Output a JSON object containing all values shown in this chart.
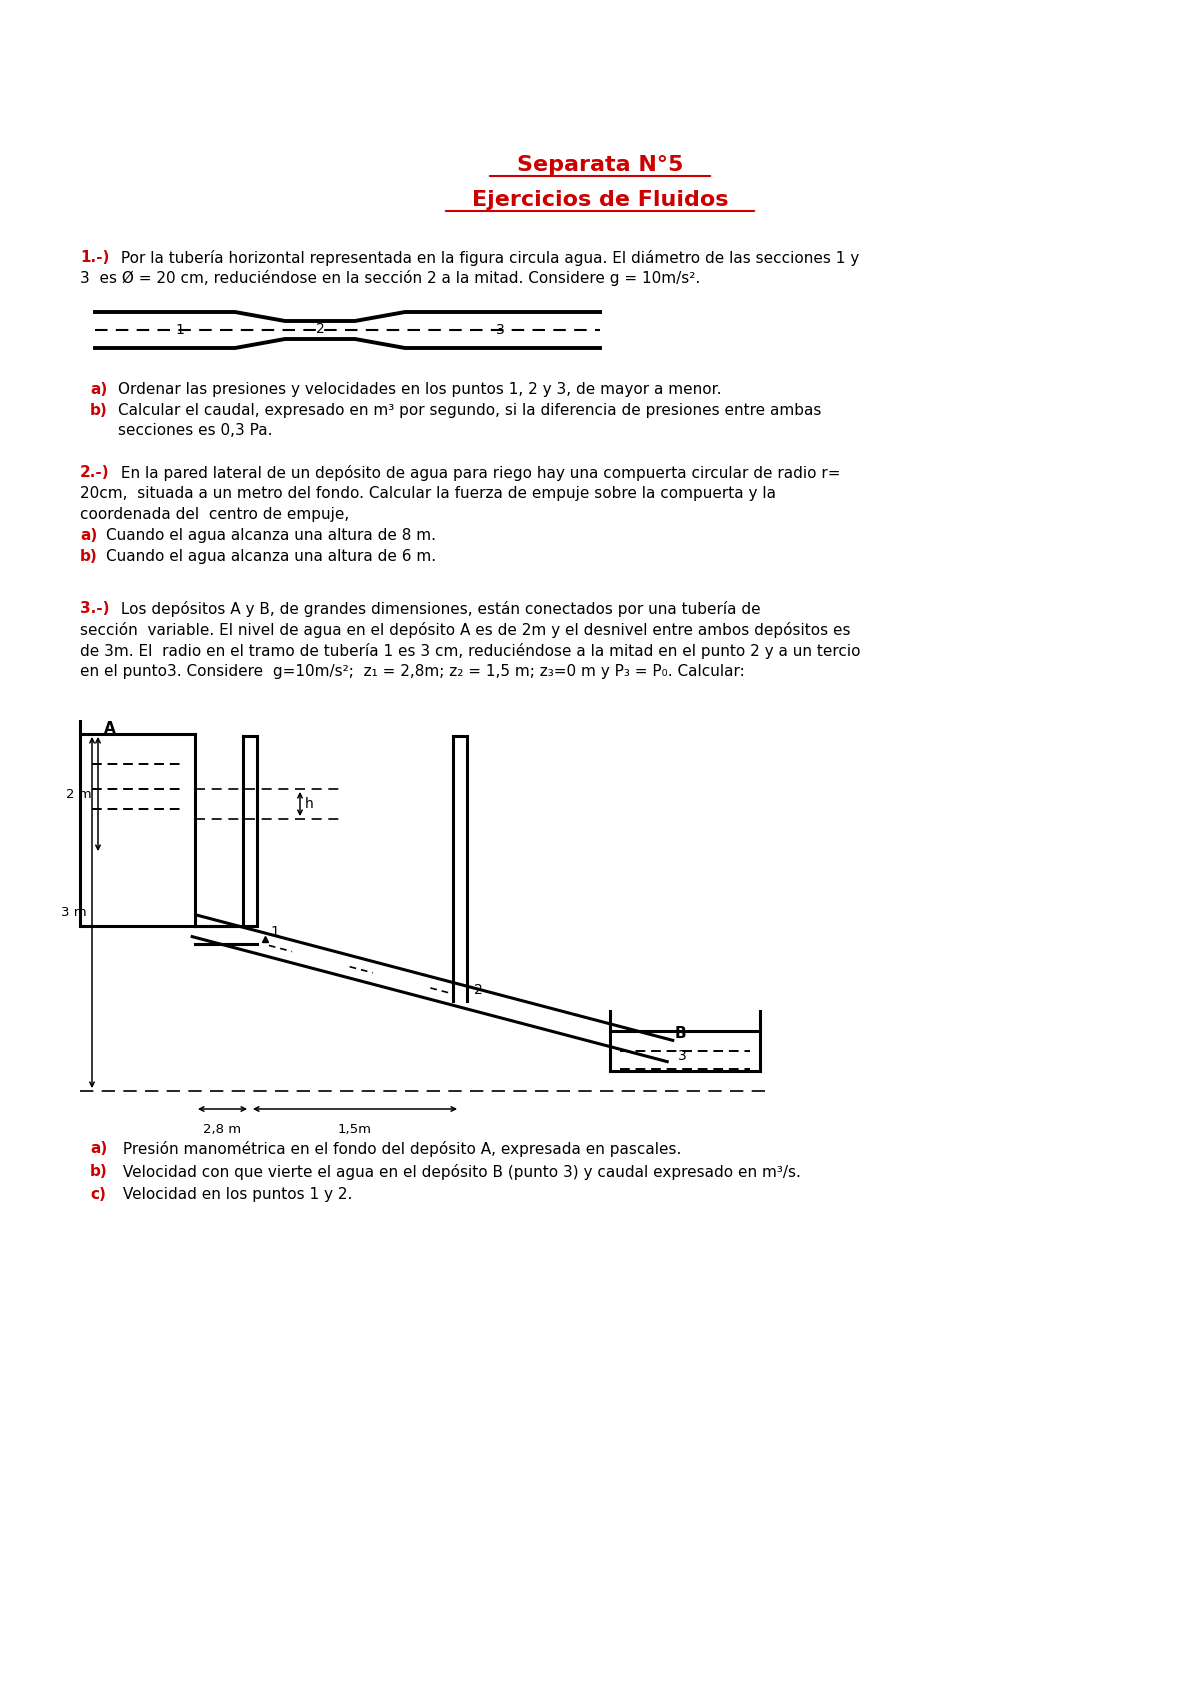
{
  "title_line1": "Separata N°5",
  "title_line2": "Ejercicios de Fluidos",
  "title_color": "#cc0000",
  "text_color": "#000000",
  "red_color": "#cc0000",
  "bg_color": "#ffffff",
  "font_size_title": 16,
  "font_size_body": 11,
  "font_size_small": 9.5,
  "problem1_prefix": "1.-)",
  "problem1_line1": " Por la tubería horizontal representada en la figura circula agua. El diámetro de las secciones 1 y",
  "problem1_line2": "3  es Ø = 20 cm, reduciéndose en la sección 2 a la mitad. Considere g = 10m/s².",
  "problem1a_label": "a)",
  "problem1a_text": "Ordenar las presiones y velocidades en los puntos 1, 2 y 3, de mayor a menor.",
  "problem1b_label": "b)",
  "problem1b_line1": "Calcular el caudal, expresado en m³ por segundo, si la diferencia de presiones entre ambas",
  "problem1b_line2": "secciones es 0,3 Pa.",
  "problem2_prefix": "2.-)",
  "problem2_line1": " En la pared lateral de un depósito de agua para riego hay una compuerta circular de radio r=",
  "problem2_line2": "20cm,  situada a un metro del fondo. Calcular la fuerza de empuje sobre la compuerta y la",
  "problem2_line3": "coordenada del  centro de empuje,",
  "problem2a_label": "a)",
  "problem2a_text": "Cuando el agua alcanza una altura de 8 m.",
  "problem2b_label": "b)",
  "problem2b_text": "Cuando el agua alcanza una altura de 6 m.",
  "problem3_prefix": "3.-)",
  "problem3_line1": " Los depósitos A y B, de grandes dimensiones, están conectados por una tubería de",
  "problem3_line2": "sección  variable. El nivel de agua en el depósito A es de 2m y el desnivel entre ambos depósitos es",
  "problem3_line3": "de 3m. El  radio en el tramo de tubería 1 es 3 cm, reduciéndose a la mitad en el punto 2 y a un tercio",
  "problem3_line4": "en el punto3. Considere  g=10m/s²;  z₁ = 2,8m; z₂ = 1,5 m; z₃=0 m y P₃ = P₀. Calcular:",
  "problem3a_label": "a)",
  "problem3a_text": " Presión manométrica en el fondo del depósito A, expresada en pascales.",
  "problem3b_label": "b)",
  "problem3b_text": " Velocidad con que vierte el agua en el depósito B (punto 3) y caudal expresado en m³/s.",
  "problem3c_label": "c)",
  "problem3c_text": " Velocidad en los puntos 1 y 2."
}
